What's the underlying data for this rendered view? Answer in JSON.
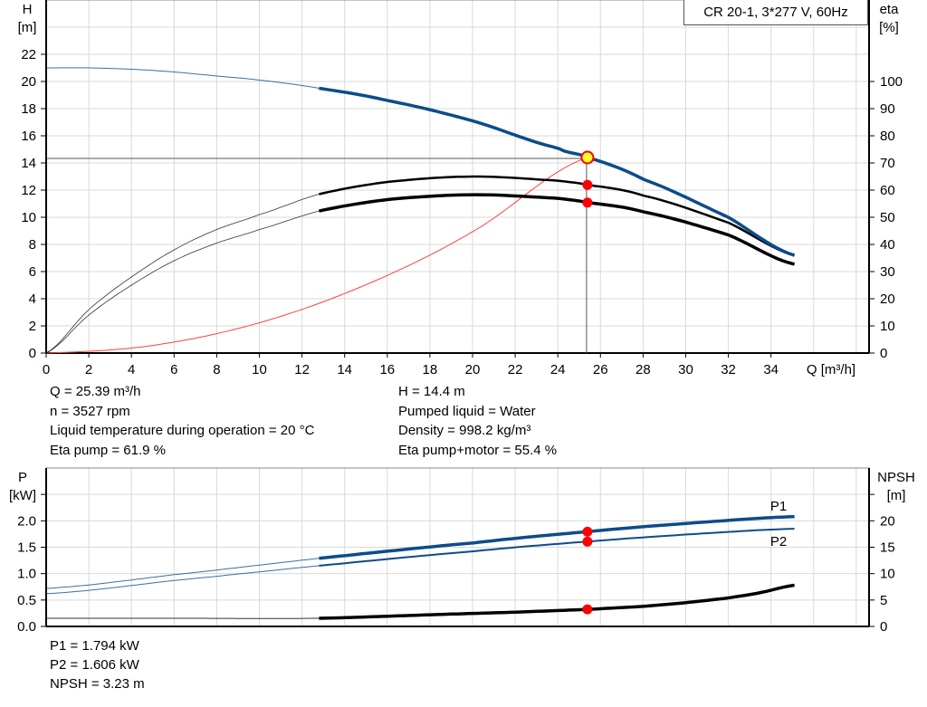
{
  "title": "CR 20-1, 3*277 V, 60Hz",
  "colors": {
    "head": "#0c4c8a",
    "eta": "#000000",
    "system": "#ff4040",
    "power": "#0c4c8a",
    "npsh": "#000000",
    "point": "#ff0000",
    "duty_point_fill": "#ffff33",
    "grid": "#d9d9d9"
  },
  "info_top_left": [
    "Q = 25.39 m³/h",
    "n = 3527 rpm",
    "Liquid temperature during operation = 20 °C",
    "Eta pump = 61.9 %"
  ],
  "info_top_right": [
    "H = 14.4 m",
    "Pumped liquid = Water",
    "Density = 998.2 kg/m³",
    "Eta pump+motor = 55.4 %"
  ],
  "info_bottom": [
    "P1 = 1.794 kW",
    "P2 = 1.606 kW",
    "NPSH = 3.23 m"
  ],
  "chart_data": [
    {
      "type": "line",
      "xlabel": "Q [m³/h]",
      "ylabel": "H\n[m]",
      "y2label": "eta\n[%]",
      "xlim": [
        0,
        38.6
      ],
      "ylim": [
        0,
        26
      ],
      "y2lim": [
        0,
        130
      ],
      "xticks": [
        0,
        2,
        4,
        6,
        8,
        10,
        12,
        14,
        16,
        18,
        20,
        22,
        24,
        26,
        28,
        30,
        32,
        34
      ],
      "yticks": [
        0,
        2,
        4,
        6,
        8,
        10,
        12,
        14,
        16,
        18,
        20,
        22
      ],
      "y2ticks": [
        0,
        10,
        20,
        30,
        40,
        50,
        60,
        70,
        80,
        90,
        100
      ],
      "grid": true,
      "bold_from_q": 12.8,
      "duty_point": {
        "Q": 25.39,
        "H": 14.4,
        "eta_pump": 61.9,
        "eta_pump_motor": 55.4
      },
      "series": [
        {
          "key": "H",
          "axis": "left",
          "x": [
            0,
            2,
            4,
            6,
            8,
            10,
            12.8,
            16,
            20,
            24,
            25.39,
            28,
            32,
            35.1
          ],
          "y": [
            21,
            21,
            20.9,
            20.7,
            20.4,
            20.1,
            19.5,
            18.6,
            17.1,
            15.1,
            14.4,
            12.8,
            10.0,
            7.2
          ]
        },
        {
          "key": "eta_pump",
          "axis": "right",
          "x": [
            0,
            2,
            4,
            6,
            8,
            10,
            12.8,
            16,
            20,
            24,
            25.39,
            28,
            32,
            35.1
          ],
          "y": [
            0,
            16,
            28,
            38,
            45.5,
            51,
            58.5,
            63,
            65,
            63.5,
            61.9,
            58,
            48,
            36
          ]
        },
        {
          "key": "eta_pump_motor",
          "axis": "right",
          "x": [
            0,
            2,
            4,
            6,
            8,
            10,
            12.8,
            16,
            20,
            24,
            25.39,
            28,
            32,
            35.1
          ],
          "y": [
            0,
            14,
            25,
            34,
            40.5,
            45.5,
            52.3,
            56.5,
            58.3,
            57,
            55.4,
            52,
            43.5,
            32.7
          ]
        },
        {
          "key": "system",
          "axis": "left",
          "x": [
            0,
            5,
            10,
            15,
            20,
            25.39
          ],
          "y": [
            0,
            0.56,
            2.23,
            5.03,
            8.94,
            14.4
          ]
        }
      ]
    },
    {
      "type": "line",
      "ylabel": "P\n[kW]",
      "y2label": "NPSH\n[m]",
      "xlim": [
        0,
        38.6
      ],
      "ylim": [
        0,
        3.0
      ],
      "y2lim": [
        0,
        30
      ],
      "yticks": [
        "0.0",
        "0.5",
        "1.0",
        "1.5",
        "2.0",
        ""
      ],
      "y2ticks": [
        "0",
        "5",
        "10",
        "15",
        "20",
        ""
      ],
      "grid": true,
      "bold_from_q": 12.8,
      "duty_point": {
        "Q": 25.39,
        "P1": 1.794,
        "P2": 1.606,
        "NPSH": 3.23
      },
      "series": [
        {
          "name": "P1",
          "axis": "left",
          "x": [
            0,
            6,
            12.8,
            20,
            25.39,
            30,
            35.1
          ],
          "y": [
            0.72,
            0.98,
            1.29,
            1.58,
            1.794,
            1.95,
            2.08
          ]
        },
        {
          "name": "P2",
          "axis": "left",
          "x": [
            0,
            6,
            12.8,
            20,
            25.39,
            30,
            35.1
          ],
          "y": [
            0.62,
            0.87,
            1.15,
            1.42,
            1.606,
            1.74,
            1.85
          ]
        },
        {
          "key": "NPSH",
          "axis": "right",
          "x": [
            0,
            6,
            12.8,
            18,
            22,
            25.39,
            28,
            30,
            32,
            33.5,
            35.1
          ],
          "y": [
            1.55,
            1.55,
            1.55,
            2.2,
            2.7,
            3.23,
            3.8,
            4.5,
            5.4,
            6.4,
            7.8
          ]
        }
      ]
    }
  ]
}
